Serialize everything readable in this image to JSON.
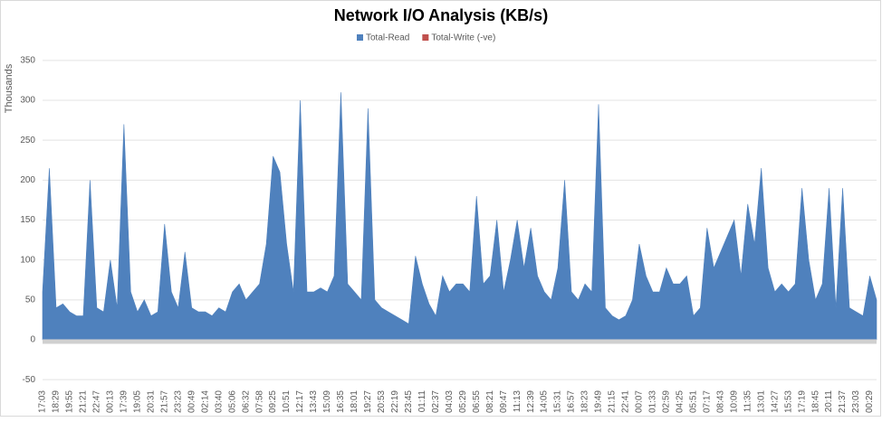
{
  "chart_data": {
    "type": "area",
    "title": "Network I/O Analysis (KB/s)",
    "y_label": "Thousands",
    "categories": [
      "17:03",
      null,
      "18:29",
      null,
      "19:55",
      null,
      "21:21",
      null,
      "22:47",
      null,
      "00:13",
      null,
      "17:39",
      null,
      "19:05",
      null,
      "20:31",
      null,
      "21:57",
      null,
      "23:23",
      null,
      "00:49",
      null,
      "02:14",
      null,
      "03:40",
      null,
      "05:06",
      null,
      "06:32",
      null,
      "07:58",
      null,
      "09:25",
      null,
      "10:51",
      null,
      "12:17",
      null,
      "13:43",
      null,
      "15:09",
      null,
      "16:35",
      null,
      "18:01",
      null,
      "19:27",
      null,
      "20:53",
      null,
      "22:19",
      null,
      "23:45",
      null,
      "01:11",
      null,
      "02:37",
      null,
      "04:03",
      null,
      "05:29",
      null,
      "06:55",
      null,
      "08:21",
      null,
      "09:47",
      null,
      "11:13",
      null,
      "12:39",
      null,
      "14:05",
      null,
      "15:31",
      null,
      "16:57",
      null,
      "18:23",
      null,
      "19:49",
      null,
      "21:15",
      null,
      "22:41",
      null,
      "00:07",
      null,
      "01:33",
      null,
      "02:59",
      null,
      "04:25",
      null,
      "05:51",
      null,
      "07:17",
      null,
      "08:43",
      null,
      "10:09",
      null,
      "11:35",
      null,
      "13:01",
      null,
      "14:27",
      null,
      "15:53",
      null,
      "17:19",
      null,
      "18:45",
      null,
      "20:11",
      null,
      "21:37",
      null,
      "23:03",
      null,
      "00:29",
      null
    ],
    "series": [
      {
        "name": "Total-Read",
        "color": "#4f81bd",
        "values": [
          60,
          215,
          40,
          45,
          35,
          30,
          30,
          200,
          40,
          35,
          100,
          40,
          270,
          60,
          35,
          50,
          30,
          35,
          145,
          60,
          40,
          110,
          40,
          35,
          35,
          30,
          40,
          35,
          60,
          70,
          50,
          60,
          70,
          120,
          230,
          210,
          120,
          60,
          300,
          60,
          60,
          65,
          60,
          80,
          310,
          70,
          60,
          50,
          290,
          50,
          40,
          35,
          30,
          25,
          20,
          105,
          70,
          45,
          30,
          80,
          60,
          70,
          70,
          60,
          180,
          70,
          80,
          150,
          60,
          100,
          150,
          90,
          140,
          80,
          60,
          50,
          90,
          200,
          60,
          50,
          70,
          60,
          295,
          40,
          30,
          25,
          30,
          50,
          120,
          80,
          60,
          60,
          90,
          70,
          70,
          80,
          30,
          40,
          140,
          90,
          110,
          130,
          150,
          80,
          170,
          120,
          215,
          90,
          60,
          70,
          60,
          70,
          190,
          100,
          50,
          70,
          190,
          40,
          190,
          40,
          35,
          30,
          80,
          50
        ]
      },
      {
        "name": "Total-Write (-ve)",
        "color": "#c0504d",
        "values": [
          0,
          0,
          0,
          0,
          0,
          0,
          0,
          0,
          0,
          0,
          0,
          0,
          0,
          0,
          0,
          0,
          0,
          0,
          0,
          0,
          0,
          0,
          0,
          0,
          0,
          0,
          0,
          0,
          0,
          0,
          0,
          0,
          0,
          0,
          0,
          0,
          0,
          0,
          0,
          0,
          0,
          0,
          0,
          0,
          0,
          0,
          0,
          0,
          0,
          0,
          0,
          0,
          0,
          0,
          0,
          0,
          0,
          0,
          0,
          0,
          0,
          0,
          0,
          0,
          0,
          0,
          0,
          0,
          0,
          0,
          0,
          0,
          0,
          0,
          0,
          0,
          0,
          0,
          0,
          0,
          0,
          0,
          0,
          0,
          0,
          0,
          0,
          0,
          0,
          0,
          0,
          0,
          0,
          0,
          0,
          0,
          0,
          0,
          0,
          0,
          0,
          0,
          0,
          0,
          0,
          0,
          0,
          0,
          0,
          0,
          0,
          0,
          0,
          0,
          0,
          0,
          0,
          0,
          0,
          0,
          0,
          0,
          0,
          0
        ]
      }
    ],
    "ylim": [
      -60,
      360
    ],
    "yticks": [
      -50,
      0,
      50,
      100,
      150,
      200,
      250,
      300,
      350
    ],
    "grid": true,
    "legend": "top"
  }
}
